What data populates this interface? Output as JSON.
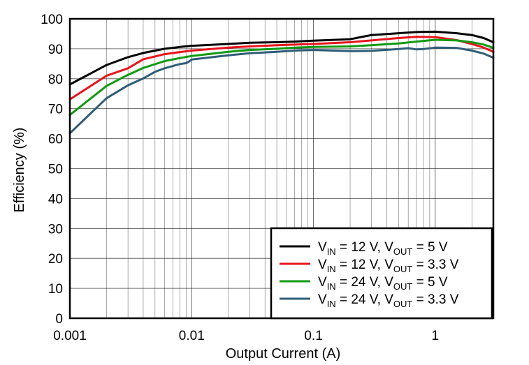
{
  "chart_data": {
    "type": "line",
    "title": "",
    "xlabel": "Output Current (A)",
    "ylabel": "Efficiency (%)",
    "x_scale": "log",
    "xlim": [
      0.001,
      3
    ],
    "ylim": [
      0,
      100
    ],
    "x_ticks": [
      0.001,
      0.01,
      0.1,
      1
    ],
    "x_tick_labels": [
      "0.001",
      "0.01",
      "0.1",
      "1"
    ],
    "y_ticks": [
      0,
      10,
      20,
      30,
      40,
      50,
      60,
      70,
      80,
      90,
      100
    ],
    "y_tick_labels": [
      "0",
      "10",
      "20",
      "30",
      "40",
      "50",
      "60",
      "70",
      "80",
      "90",
      "100"
    ],
    "grid": true,
    "legend_position": "bottom-right",
    "series": [
      {
        "name": "V_IN = 12 V, V_OUT = 5 V",
        "legend": {
          "a": "V",
          "a_sub": "IN",
          "b": " = 12 V, V",
          "b_sub": "OUT",
          "c": " = 5 V"
        },
        "color": "#000000",
        "x": [
          0.001,
          0.002,
          0.003,
          0.004,
          0.006,
          0.008,
          0.01,
          0.02,
          0.03,
          0.05,
          0.07,
          0.1,
          0.2,
          0.3,
          0.5,
          0.7,
          1,
          1.5,
          2,
          2.5,
          3
        ],
        "y": [
          78.1,
          84.6,
          87.2,
          88.6,
          90.0,
          90.6,
          91.0,
          91.6,
          92.0,
          92.2,
          92.4,
          92.7,
          93.2,
          94.6,
          95.2,
          95.6,
          95.7,
          95.2,
          94.6,
          93.6,
          92.2
        ]
      },
      {
        "name": "V_IN = 12 V, V_OUT = 3.3 V",
        "legend": {
          "a": "V",
          "a_sub": "IN",
          "b": " = 12 V, V",
          "b_sub": "OUT",
          "c": " = 3.3 V"
        },
        "color": "#e8141c",
        "x": [
          0.001,
          0.002,
          0.003,
          0.004,
          0.006,
          0.008,
          0.01,
          0.02,
          0.03,
          0.05,
          0.07,
          0.1,
          0.2,
          0.3,
          0.5,
          0.7,
          1,
          1.5,
          2,
          2.5,
          3
        ],
        "y": [
          73.1,
          81.0,
          83.5,
          86.5,
          88.2,
          88.9,
          89.4,
          90.4,
          90.8,
          91.2,
          91.4,
          91.6,
          92.2,
          92.8,
          93.6,
          94.0,
          93.9,
          92.9,
          91.6,
          90.4,
          89.0
        ]
      },
      {
        "name": "V_IN = 24 V, V_OUT = 5 V",
        "legend": {
          "a": "V",
          "a_sub": "IN",
          "b": " = 24 V, V",
          "b_sub": "OUT",
          "c": " = 5 V"
        },
        "color": "#119a11",
        "x": [
          0.001,
          0.002,
          0.003,
          0.004,
          0.006,
          0.008,
          0.01,
          0.02,
          0.03,
          0.05,
          0.07,
          0.1,
          0.2,
          0.3,
          0.5,
          0.7,
          1,
          1.5,
          2,
          2.5,
          3
        ],
        "y": [
          67.9,
          77.6,
          81.3,
          83.6,
          85.9,
          86.9,
          87.6,
          89.0,
          89.6,
          90.0,
          90.4,
          90.6,
          90.8,
          91.2,
          91.8,
          92.4,
          93.0,
          92.8,
          92.2,
          91.4,
          90.3
        ]
      },
      {
        "name": "V_IN = 24 V, V_OUT = 3.3 V",
        "legend": {
          "a": "V",
          "a_sub": "IN",
          "b": " = 24 V, V",
          "b_sub": "OUT",
          "c": " = 3.3 V"
        },
        "color": "#2f5d78",
        "x": [
          0.001,
          0.002,
          0.003,
          0.004,
          0.005,
          0.006,
          0.008,
          0.009,
          0.0095,
          0.01,
          0.02,
          0.03,
          0.05,
          0.07,
          0.1,
          0.2,
          0.3,
          0.5,
          0.6,
          0.7,
          0.8,
          1,
          1.5,
          2,
          2.5,
          3
        ],
        "y": [
          61.8,
          73.5,
          77.8,
          80.1,
          82.3,
          83.5,
          84.9,
          85.2,
          85.7,
          86.4,
          87.8,
          88.5,
          89.0,
          89.4,
          89.6,
          89.2,
          89.3,
          89.9,
          90.2,
          89.8,
          89.9,
          90.4,
          90.3,
          89.4,
          88.4,
          87.0
        ]
      }
    ]
  }
}
